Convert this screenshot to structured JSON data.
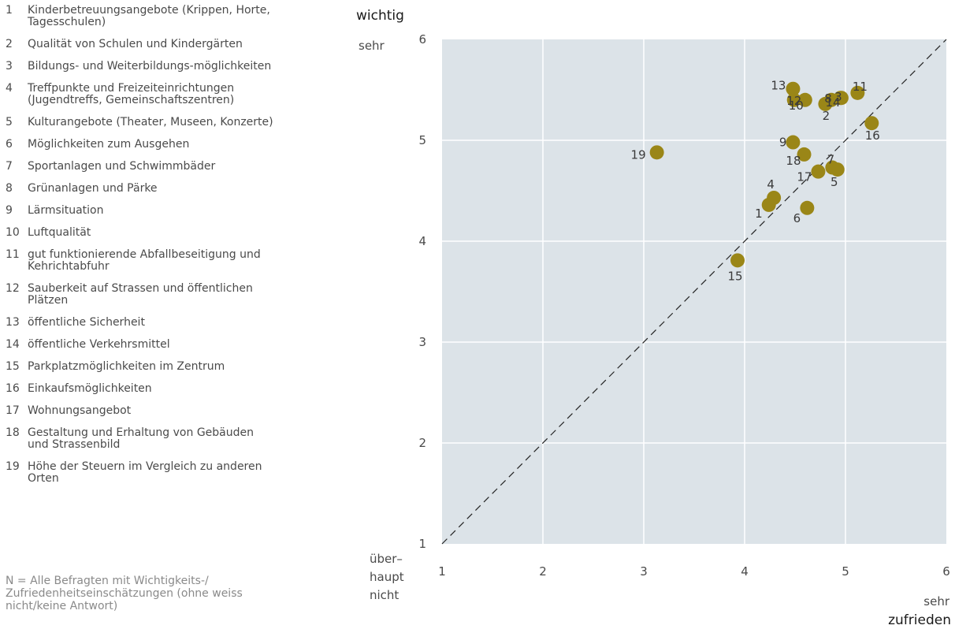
{
  "legend": [
    {
      "num": "1",
      "text": "Kinderbetreuungsangebote (Krippen, Horte, Tagesschulen)"
    },
    {
      "num": "2",
      "text": "Qualität von Schulen und Kindergärten"
    },
    {
      "num": "3",
      "text": "Bildungs- und Weiterbildungs-möglichkeiten"
    },
    {
      "num": "4",
      "text": "Treffpunkte und Freizeiteinrichtungen (Jugendtreffs, Gemeinschaftszentren)"
    },
    {
      "num": "5",
      "text": "Kulturangebote (Theater, Museen, Konzerte)"
    },
    {
      "num": "6",
      "text": "Möglichkeiten zum Ausgehen"
    },
    {
      "num": "7",
      "text": "Sportanlagen und Schwimmbäder"
    },
    {
      "num": "8",
      "text": "Grünanlagen und Pärke"
    },
    {
      "num": "9",
      "text": "Lärmsituation"
    },
    {
      "num": "10",
      "text": "Luftqualität"
    },
    {
      "num": "11",
      "text": "gut funktionierende Abfallbeseitigung und Kehrichtabfuhr"
    },
    {
      "num": "12",
      "text": "Sauberkeit auf Strassen und öffentlichen Plätzen"
    },
    {
      "num": "13",
      "text": "öffentliche Sicherheit"
    },
    {
      "num": "14",
      "text": "öffentliche Verkehrsmittel"
    },
    {
      "num": "15",
      "text": "Parkplatzmöglichkeiten im Zentrum"
    },
    {
      "num": "16",
      "text": "Einkaufsmöglichkeiten"
    },
    {
      "num": "17",
      "text": "Wohnungsangebot"
    },
    {
      "num": "18",
      "text": "Gestaltung und Erhaltung von Gebäuden und Strassenbild"
    },
    {
      "num": "19",
      "text": "Höhe der Steuern im Vergleich zu anderen Orten"
    }
  ],
  "note": "N = Alle Befragten mit Wichtigkeits-/ Zufriedenheitseinschätzungen (ohne weiss nicht/keine Antwort)",
  "chart_data": {
    "type": "scatter",
    "xlim": [
      1,
      6
    ],
    "ylim": [
      1,
      6
    ],
    "x_ticks": [
      1,
      2,
      3,
      4,
      5,
      6
    ],
    "y_ticks": [
      1,
      2,
      3,
      4,
      5,
      6
    ],
    "grid": true,
    "reference_line": "diagonal y = x (dashed)",
    "y_axis": {
      "top_label_bold": "wichtig",
      "top_label": "sehr",
      "bottom_label": "über– haupt nicht"
    },
    "x_axis": {
      "right_label": "sehr",
      "right_label_bold": "zufrieden"
    },
    "colors": {
      "plot_background": "#dce3e8",
      "grid": "#ffffff",
      "point": "#9a8617",
      "text": "#4a4a4a"
    },
    "points": [
      {
        "label": "1",
        "x": 4.24,
        "y": 4.36
      },
      {
        "label": "2",
        "x": 4.8,
        "y": 5.36
      },
      {
        "label": "3",
        "x": 4.96,
        "y": 5.42
      },
      {
        "label": "4",
        "x": 4.29,
        "y": 4.43
      },
      {
        "label": "5",
        "x": 4.92,
        "y": 4.71
      },
      {
        "label": "6",
        "x": 4.62,
        "y": 4.33
      },
      {
        "label": "7",
        "x": 4.87,
        "y": 4.73
      },
      {
        "label": "8",
        "x": 4.86,
        "y": 5.4
      },
      {
        "label": "9",
        "x": 4.48,
        "y": 4.98
      },
      {
        "label": "10",
        "x": 4.6,
        "y": 5.4
      },
      {
        "label": "11",
        "x": 5.12,
        "y": 5.47
      },
      {
        "label": "12",
        "x": 4.49,
        "y": 5.4
      },
      {
        "label": "13",
        "x": 4.48,
        "y": 5.51
      },
      {
        "label": "14",
        "x": 4.95,
        "y": 5.42
      },
      {
        "label": "15",
        "x": 3.93,
        "y": 3.81
      },
      {
        "label": "16",
        "x": 5.26,
        "y": 5.17
      },
      {
        "label": "17",
        "x": 4.73,
        "y": 4.69
      },
      {
        "label": "18",
        "x": 4.59,
        "y": 4.86
      },
      {
        "label": "19",
        "x": 3.13,
        "y": 4.88
      }
    ]
  }
}
